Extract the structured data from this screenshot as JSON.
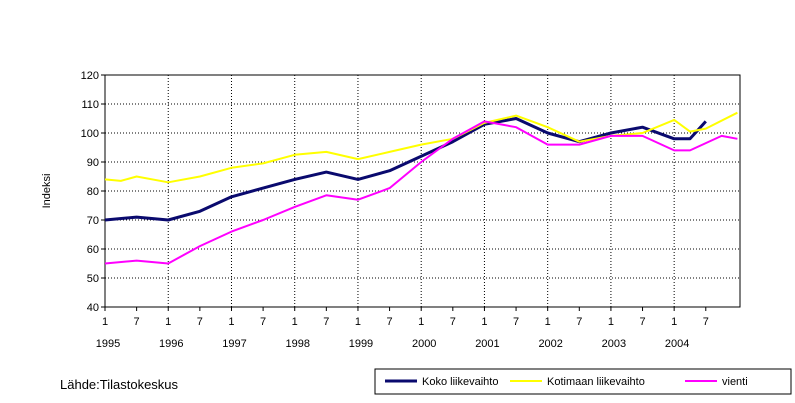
{
  "source_text": "Lähde:Tilastokeskus",
  "chart_data": {
    "type": "line",
    "title": "",
    "ylabel": "Indeksi",
    "xlabel": "",
    "ylim": [
      40,
      120
    ],
    "y_ticks": [
      40,
      50,
      60,
      70,
      80,
      90,
      100,
      110,
      120
    ],
    "grid": "horizontal and vertical dotted",
    "legend_position": "bottom-right",
    "x_start": "1995-01",
    "months": 115,
    "x_tick_labels": [
      "1",
      "7",
      "1",
      "7",
      "1",
      "7",
      "1",
      "7",
      "1",
      "7",
      "1",
      "7",
      "1",
      "7",
      "1",
      "7",
      "1",
      "7",
      "1",
      "7"
    ],
    "year_labels": [
      "1995",
      "1996",
      "1997",
      "1998",
      "1999",
      "2000",
      "2001",
      "2002",
      "2003",
      "2004"
    ],
    "series": [
      {
        "name": "Koko liikevaihto",
        "color": "#0a0a6e",
        "points": [
          [
            0,
            70
          ],
          [
            6,
            71
          ],
          [
            12,
            70
          ],
          [
            18,
            73
          ],
          [
            24,
            78
          ],
          [
            30,
            81
          ],
          [
            36,
            84
          ],
          [
            42,
            86.5
          ],
          [
            48,
            84
          ],
          [
            54,
            87
          ],
          [
            60,
            92
          ],
          [
            66,
            97
          ],
          [
            72,
            103
          ],
          [
            78,
            105
          ],
          [
            84,
            100
          ],
          [
            90,
            97
          ],
          [
            96,
            100
          ],
          [
            102,
            102
          ],
          [
            108,
            98
          ],
          [
            111,
            98
          ],
          [
            114,
            104
          ]
        ]
      },
      {
        "name": "Kotimaan liikevaihto",
        "color": "#ffff00",
        "points": [
          [
            0,
            84
          ],
          [
            3,
            83.5
          ],
          [
            6,
            85
          ],
          [
            12,
            83
          ],
          [
            18,
            85
          ],
          [
            24,
            88
          ],
          [
            30,
            89.5
          ],
          [
            36,
            92.5
          ],
          [
            42,
            93.5
          ],
          [
            48,
            91
          ],
          [
            54,
            93.5
          ],
          [
            60,
            96
          ],
          [
            66,
            98
          ],
          [
            72,
            103.5
          ],
          [
            78,
            106
          ],
          [
            84,
            102
          ],
          [
            90,
            97
          ],
          [
            96,
            99
          ],
          [
            102,
            100
          ],
          [
            108,
            104.5
          ],
          [
            111,
            100.5
          ],
          [
            114,
            101.5
          ],
          [
            120,
            107
          ]
        ]
      },
      {
        "name": "vienti",
        "color": "#ff00ff",
        "points": [
          [
            0,
            55
          ],
          [
            6,
            56
          ],
          [
            12,
            55
          ],
          [
            18,
            61
          ],
          [
            24,
            66
          ],
          [
            30,
            70
          ],
          [
            36,
            74.5
          ],
          [
            42,
            78.5
          ],
          [
            48,
            77
          ],
          [
            54,
            81
          ],
          [
            60,
            90
          ],
          [
            66,
            98
          ],
          [
            72,
            104
          ],
          [
            78,
            102
          ],
          [
            84,
            96
          ],
          [
            90,
            96
          ],
          [
            96,
            99
          ],
          [
            102,
            99
          ],
          [
            108,
            94
          ],
          [
            111,
            94
          ],
          [
            117,
            99
          ],
          [
            120,
            98
          ]
        ]
      }
    ]
  }
}
